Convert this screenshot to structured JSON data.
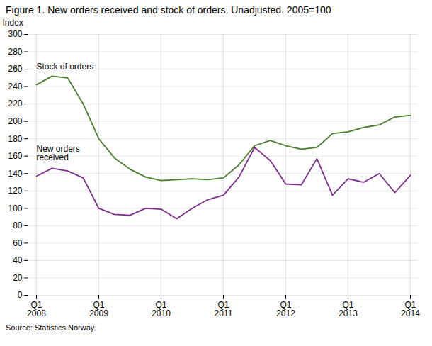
{
  "chart_data": {
    "type": "line",
    "title": "Figure 1. New orders received and stock of orders. Unadjusted. 2005=100",
    "ylabel": "Index",
    "source": "Source: Statistics Norway.",
    "categories": [
      "Q1\n2008",
      null,
      null,
      null,
      "Q1\n2009",
      null,
      null,
      null,
      "Q1\n2010",
      null,
      null,
      null,
      "Q1\n2011",
      null,
      null,
      null,
      "Q1\n2012",
      null,
      null,
      null,
      "Q1\n2013",
      null,
      null,
      null,
      "Q1\n2014"
    ],
    "series": [
      {
        "name": "Stock of orders",
        "color": "#4a7c2f",
        "values": [
          242,
          252,
          250,
          220,
          180,
          158,
          145,
          136,
          132,
          133,
          134,
          133,
          135,
          150,
          172,
          178,
          172,
          168,
          170,
          186,
          188,
          193,
          196,
          205,
          207
        ]
      },
      {
        "name": "New orders\nreceived",
        "color": "#7b2d8b",
        "values": [
          137,
          146,
          143,
          135,
          100,
          93,
          92,
          100,
          99,
          88,
          100,
          110,
          115,
          136,
          170,
          155,
          128,
          127,
          157,
          115,
          134,
          130,
          140,
          118,
          138
        ]
      }
    ],
    "ylim": [
      0,
      300
    ],
    "yticks": [
      0,
      20,
      40,
      60,
      80,
      100,
      120,
      140,
      160,
      180,
      200,
      220,
      240,
      260,
      280,
      300
    ],
    "grid": true
  }
}
